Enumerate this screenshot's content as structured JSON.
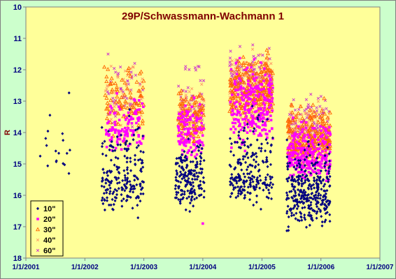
{
  "chart_data": {
    "type": "scatter",
    "title": "29P/Schwassmann-Wachmann 1",
    "xlabel": "",
    "ylabel": "R",
    "x_axis": {
      "type": "date",
      "range": [
        "2001-01-01",
        "2007-01-01"
      ],
      "tick_labels": [
        "1/1/2001",
        "1/1/2002",
        "1/1/2003",
        "1/1/2004",
        "1/1/2005",
        "1/1/2006",
        "1/1/2007"
      ]
    },
    "y_axis": {
      "reversed": true,
      "range": [
        10,
        18
      ],
      "tick_labels": [
        "10",
        "11",
        "12",
        "13",
        "14",
        "15",
        "16",
        "17",
        "18"
      ]
    },
    "grid": false,
    "legend_position": "bottom-left",
    "colors": {
      "plot_background": "#ffff99",
      "chart_background": "#ccffcc",
      "title_color": "#800000",
      "axis_label_color": "#000080"
    },
    "series": [
      {
        "name": "10\"",
        "marker": "diamond",
        "color": "#000080",
        "clusters": [
          {
            "x_start": "2001-03-01",
            "x_end": "2001-10-01",
            "y_min": 12.0,
            "y_max": 16.0,
            "center": 14.5,
            "count": 18
          },
          {
            "x_start": "2002-04-15",
            "x_end": "2003-01-01",
            "y_min": 12.9,
            "y_max": 17.0,
            "center": 15.5,
            "count": 200
          },
          {
            "x_start": "2003-07-15",
            "x_end": "2004-01-10",
            "y_min": 13.9,
            "y_max": 16.7,
            "center": 15.5,
            "count": 180
          },
          {
            "x_start": "2004-06-15",
            "x_end": "2005-03-10",
            "y_min": 12.8,
            "y_max": 16.6,
            "center": 15.4,
            "count": 220
          },
          {
            "x_start": "2005-06-01",
            "x_end": "2006-03-01",
            "y_min": 13.9,
            "y_max": 17.3,
            "center": 16.0,
            "count": 320
          }
        ]
      },
      {
        "name": "20\"",
        "marker": "square",
        "color": "#ff00ff",
        "clusters": [
          {
            "x_start": "2002-05-10",
            "x_end": "2003-01-01",
            "y_min": 12.3,
            "y_max": 14.8,
            "center": 13.9,
            "count": 110
          },
          {
            "x_start": "2003-08-01",
            "x_end": "2004-01-10",
            "y_min": 12.7,
            "y_max": 15.0,
            "center": 14.2,
            "count": 110
          },
          {
            "x_start": "2004-06-20",
            "x_end": "2005-03-10",
            "y_min": 11.2,
            "y_max": 14.8,
            "center": 13.2,
            "count": 230
          },
          {
            "x_start": "2005-06-10",
            "x_end": "2006-03-01",
            "y_min": 13.2,
            "y_max": 15.7,
            "center": 14.8,
            "count": 260
          }
        ],
        "points": [
          {
            "x": "2004-01-01",
            "y": 16.9
          }
        ]
      },
      {
        "name": "30\"",
        "marker": "triangle",
        "color": "#ff6600",
        "clusters": [
          {
            "x_start": "2002-05-01",
            "x_end": "2003-01-01",
            "y_min": 11.1,
            "y_max": 14.5,
            "center": 13.0,
            "count": 90
          },
          {
            "x_start": "2003-08-01",
            "x_end": "2004-01-10",
            "y_min": 12.3,
            "y_max": 14.5,
            "center": 13.6,
            "count": 100
          },
          {
            "x_start": "2004-06-15",
            "x_end": "2005-03-10",
            "y_min": 11.0,
            "y_max": 14.2,
            "center": 12.7,
            "count": 240
          },
          {
            "x_start": "2005-06-10",
            "x_end": "2006-03-01",
            "y_min": 12.7,
            "y_max": 15.2,
            "center": 14.3,
            "count": 240
          }
        ]
      },
      {
        "name": "40\"",
        "marker": "x",
        "color": "#ff9966",
        "clusters": [
          {
            "x_start": "2002-05-01",
            "x_end": "2003-01-01",
            "y_min": 11.5,
            "y_max": 14.3,
            "center": 12.9,
            "count": 60
          },
          {
            "x_start": "2003-08-01",
            "x_end": "2004-01-10",
            "y_min": 12.1,
            "y_max": 14.3,
            "center": 13.4,
            "count": 70
          },
          {
            "x_start": "2004-06-15",
            "x_end": "2005-03-10",
            "y_min": 10.9,
            "y_max": 13.9,
            "center": 12.5,
            "count": 160
          },
          {
            "x_start": "2005-06-10",
            "x_end": "2006-03-01",
            "y_min": 12.5,
            "y_max": 15.0,
            "center": 14.1,
            "count": 160
          }
        ]
      },
      {
        "name": "60\"",
        "marker": "x",
        "color": "#cc33cc",
        "clusters": [
          {
            "x_start": "2002-05-01",
            "x_end": "2003-01-01",
            "y_min": 11.1,
            "y_max": 14.2,
            "center": 12.7,
            "count": 50
          },
          {
            "x_start": "2003-08-01",
            "x_end": "2004-01-10",
            "y_min": 11.3,
            "y_max": 14.2,
            "center": 13.2,
            "count": 60
          },
          {
            "x_start": "2004-06-15",
            "x_end": "2005-03-10",
            "y_min": 11.0,
            "y_max": 13.7,
            "center": 12.3,
            "count": 140
          },
          {
            "x_start": "2005-06-10",
            "x_end": "2006-03-01",
            "y_min": 12.6,
            "y_max": 14.9,
            "center": 13.9,
            "count": 140
          }
        ]
      }
    ]
  }
}
